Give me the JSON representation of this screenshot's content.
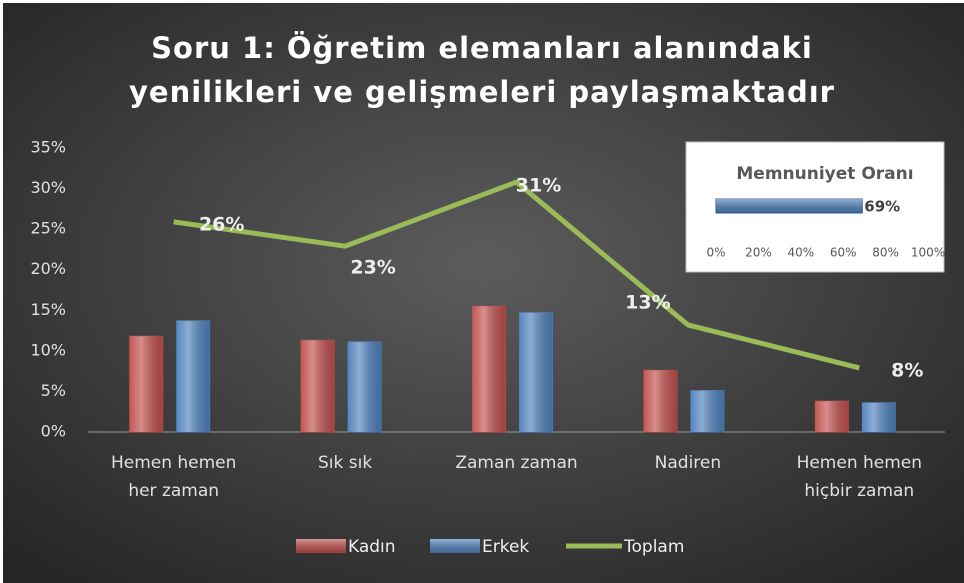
{
  "chart_data": [
    {
      "type": "combo",
      "title": [
        "Soru 1: Öğretim elemanları alanındaki",
        "yenilikleri ve gelişmeleri paylaşmaktadır"
      ],
      "categories": [
        "Hemen hemen her zaman",
        "Sık sık",
        "Zaman zaman",
        "Nadiren",
        "Hemen hemen hiçbir zaman"
      ],
      "series": [
        {
          "name": "Kadın",
          "kind": "bar",
          "color": "#c0504d",
          "values": [
            11.8,
            11.3,
            15.5,
            7.6,
            3.8
          ]
        },
        {
          "name": "Erkek",
          "kind": "bar",
          "color": "#4f81bd",
          "values": [
            13.7,
            11.1,
            14.7,
            5.1,
            3.6
          ]
        },
        {
          "name": "Toplam",
          "kind": "line",
          "color": "#9bbb59",
          "values": [
            25.9,
            22.9,
            30.8,
            13.2,
            7.9
          ],
          "value_labels": [
            "26%",
            "23%",
            "31%",
            "13%",
            "8%"
          ]
        }
      ],
      "ylim": [
        0,
        35
      ],
      "yticks": [
        {
          "value": 0,
          "label": "0%"
        },
        {
          "value": 5,
          "label": "5%"
        },
        {
          "value": 10,
          "label": "10%"
        },
        {
          "value": 15,
          "label": "15%"
        },
        {
          "value": 20,
          "label": "20%"
        },
        {
          "value": 25,
          "label": "25%"
        },
        {
          "value": 30,
          "label": "30%"
        },
        {
          "value": 35,
          "label": "35%"
        }
      ],
      "legend": "bottom"
    },
    {
      "type": "hbar",
      "title": "Memnuniyet Oranı",
      "values": [
        69
      ],
      "value_labels": [
        "69%"
      ],
      "color": "#4f81bd",
      "xlim": [
        0,
        100
      ],
      "xticks": [
        {
          "value": 0,
          "label": "0%"
        },
        {
          "value": 20,
          "label": "20%"
        },
        {
          "value": 40,
          "label": "40%"
        },
        {
          "value": 60,
          "label": "60%"
        },
        {
          "value": 80,
          "label": "80%"
        },
        {
          "value": 100,
          "label": "100%"
        }
      ]
    }
  ]
}
